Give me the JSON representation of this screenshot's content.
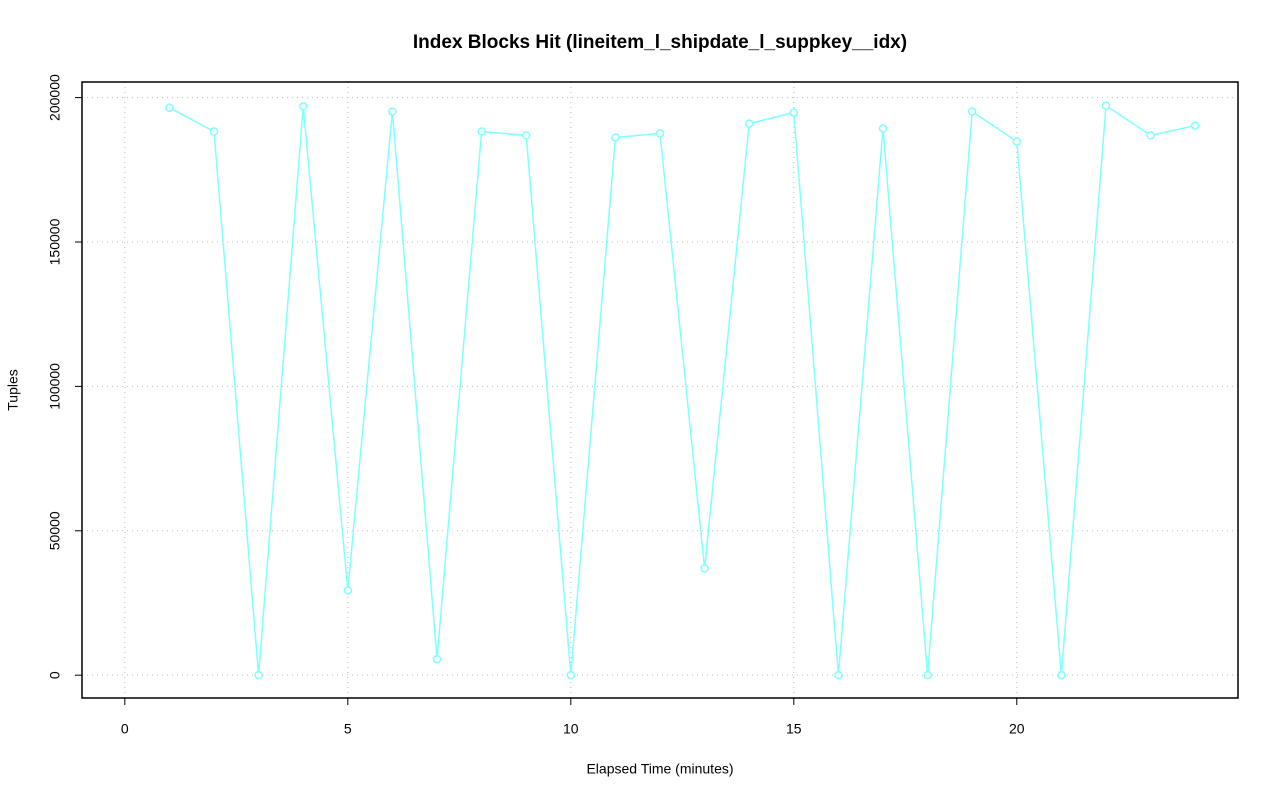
{
  "chart_data": {
    "type": "line",
    "title": "Index Blocks Hit (lineitem_l_shipdate_l_suppkey__idx)",
    "x_label": "Elapsed Time (minutes)",
    "y_label": "Tuples",
    "x": [
      1,
      2,
      3,
      4,
      5,
      6,
      7,
      8,
      9,
      10,
      11,
      12,
      13,
      14,
      15,
      16,
      17,
      18,
      19,
      20,
      21,
      22,
      23,
      24
    ],
    "series": [
      {
        "name": "lineitem_l_shipdate_l_suppkey__idx",
        "color": "#80ffff",
        "values": [
          196500,
          188250,
          0,
          196900,
          29360,
          195160,
          5530,
          188250,
          186900,
          0,
          186200,
          187600,
          36960,
          191000,
          194800,
          0,
          189300,
          0,
          195200,
          184800,
          0,
          197200,
          186900,
          190300
        ]
      }
    ],
    "xlim": [
      -0.96,
      24.96
    ],
    "ylim": [
      -7900,
      205400
    ],
    "xticks": [
      0,
      5,
      10,
      15,
      20
    ],
    "yticks": [
      0,
      50000,
      100000,
      150000,
      200000
    ],
    "grid": true
  }
}
